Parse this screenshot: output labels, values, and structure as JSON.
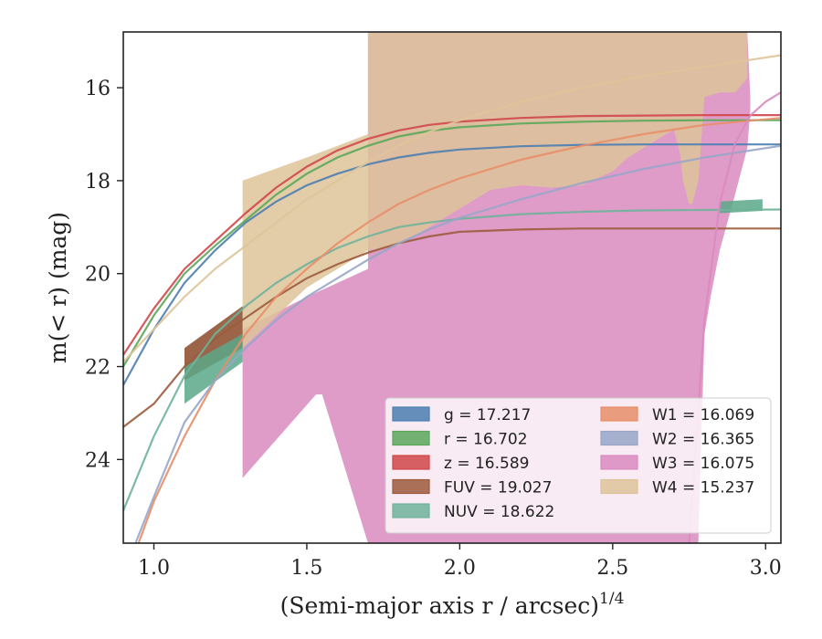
{
  "chart_data": {
    "type": "line",
    "xlabel": "(Semi-major axis r / arcsec)",
    "xlabel_superscript": "1/4",
    "ylabel": "m(< r) (mag)",
    "xlim": [
      0.9,
      3.05
    ],
    "ylim": [
      25.8,
      14.8
    ],
    "y_inverted": true,
    "xticks": [
      "1.0",
      "1.5",
      "2.0",
      "2.5",
      "3.0"
    ],
    "yticks": [
      "16",
      "18",
      "20",
      "22",
      "24"
    ],
    "grid": false,
    "legend_position": "lower-right",
    "series": [
      {
        "name": "g = 17.217",
        "color": "#4c7eb0",
        "x": [
          0.9,
          1.0,
          1.1,
          1.2,
          1.3,
          1.4,
          1.5,
          1.6,
          1.7,
          1.8,
          1.9,
          2.0,
          2.2,
          2.4,
          2.6,
          2.8,
          3.05
        ],
        "y": [
          22.4,
          21.2,
          20.2,
          19.5,
          18.9,
          18.45,
          18.1,
          17.85,
          17.65,
          17.5,
          17.4,
          17.33,
          17.26,
          17.23,
          17.22,
          17.22,
          17.22
        ]
      },
      {
        "name": "r = 16.702",
        "color": "#5aa75a",
        "x": [
          0.9,
          1.0,
          1.1,
          1.2,
          1.3,
          1.4,
          1.5,
          1.6,
          1.7,
          1.8,
          1.9,
          2.0,
          2.2,
          2.4,
          2.6,
          2.8,
          3.05
        ],
        "y": [
          22.0,
          20.9,
          20.0,
          19.4,
          18.85,
          18.3,
          17.85,
          17.5,
          17.25,
          17.05,
          16.93,
          16.85,
          16.77,
          16.73,
          16.71,
          16.7,
          16.7
        ]
      },
      {
        "name": "z = 16.589",
        "color": "#d0474a",
        "x": [
          0.9,
          1.0,
          1.1,
          1.2,
          1.3,
          1.4,
          1.5,
          1.6,
          1.7,
          1.8,
          1.9,
          2.0,
          2.2,
          2.4,
          2.6,
          2.8,
          3.05
        ],
        "y": [
          21.75,
          20.75,
          19.9,
          19.3,
          18.7,
          18.15,
          17.7,
          17.35,
          17.1,
          16.92,
          16.8,
          16.73,
          16.65,
          16.61,
          16.6,
          16.59,
          16.59
        ]
      },
      {
        "name": "FUV = 19.027",
        "color": "#9c5c3c",
        "x": [
          0.9,
          1.0,
          1.1,
          1.2,
          1.3,
          1.4,
          1.5,
          1.6,
          1.7,
          1.8,
          1.9,
          2.0,
          2.2,
          2.4,
          2.6,
          2.8,
          3.05
        ],
        "y": [
          23.3,
          22.8,
          22.0,
          21.4,
          20.95,
          20.5,
          20.1,
          19.8,
          19.55,
          19.35,
          19.2,
          19.1,
          19.05,
          19.03,
          19.03,
          19.03,
          19.03
        ]
      },
      {
        "name": "NUV = 18.622",
        "color": "#6fb39a",
        "x": [
          0.9,
          1.0,
          1.1,
          1.2,
          1.3,
          1.4,
          1.5,
          1.6,
          1.7,
          1.8,
          1.9,
          2.0,
          2.2,
          2.4,
          2.6,
          2.8,
          3.05
        ],
        "y": [
          25.1,
          23.5,
          22.2,
          21.3,
          20.7,
          20.2,
          19.8,
          19.45,
          19.2,
          19.0,
          18.9,
          18.82,
          18.72,
          18.67,
          18.64,
          18.63,
          18.62
        ]
      },
      {
        "name": "W1 = 16.069",
        "color": "#e88e68",
        "x": [
          0.95,
          1.0,
          1.1,
          1.2,
          1.3,
          1.4,
          1.5,
          1.6,
          1.7,
          1.8,
          1.9,
          2.0,
          2.2,
          2.4,
          2.6,
          2.8,
          3.05
        ],
        "y": [
          25.8,
          24.9,
          23.5,
          22.3,
          21.3,
          20.5,
          19.9,
          19.35,
          18.9,
          18.5,
          18.2,
          17.95,
          17.55,
          17.25,
          17.0,
          16.8,
          16.65
        ]
      },
      {
        "name": "W2 = 16.365",
        "color": "#98a6c8",
        "x": [
          0.94,
          1.0,
          1.1,
          1.2,
          1.3,
          1.4,
          1.5,
          1.6,
          1.7,
          1.8,
          1.9,
          2.0,
          2.2,
          2.4,
          2.6,
          2.8,
          3.05
        ],
        "y": [
          25.8,
          24.8,
          23.2,
          22.3,
          21.6,
          21.0,
          20.5,
          20.1,
          19.7,
          19.35,
          19.05,
          18.8,
          18.4,
          18.05,
          17.75,
          17.5,
          17.25
        ]
      },
      {
        "name": "W3 = 16.075",
        "color": "#d98bc0",
        "x": [
          2.75,
          2.8,
          2.85,
          2.9,
          2.95,
          3.0,
          3.05
        ],
        "y": [
          25.8,
          21.0,
          18.5,
          17.2,
          16.6,
          16.3,
          16.1
        ]
      },
      {
        "name": "W4 = 15.237",
        "color": "#dec49a",
        "x": [
          0.9,
          1.0,
          1.1,
          1.2,
          1.3,
          1.4,
          1.5,
          1.6,
          1.7,
          1.8,
          1.9,
          2.0,
          2.2,
          2.4,
          2.6,
          2.8,
          3.05
        ],
        "y": [
          21.9,
          21.2,
          20.5,
          19.9,
          19.4,
          18.9,
          18.4,
          18.0,
          17.6,
          17.25,
          16.95,
          16.7,
          16.3,
          16.0,
          15.75,
          15.55,
          15.3
        ]
      }
    ],
    "bands": [
      {
        "series": "W3 = 16.075",
        "color": "#d98bc0",
        "opacity": 0.85,
        "x": [
          1.29,
          1.29,
          1.5,
          1.7,
          1.7,
          1.7,
          1.8,
          1.9,
          2.0,
          2.1,
          2.2,
          2.3,
          2.4,
          2.5,
          2.55,
          2.6,
          2.65,
          2.7,
          2.72,
          2.72,
          2.75,
          2.8,
          2.8,
          2.82,
          2.85,
          2.88,
          2.94,
          2.95,
          2.95,
          2.94,
          2.9,
          2.85,
          2.82,
          2.8,
          2.8,
          2.78,
          2.76,
          2.75,
          2.74,
          2.73,
          2.72,
          2.72,
          2.7,
          2.65,
          2.6,
          2.55,
          2.5,
          2.4,
          2.2,
          2.0,
          1.8,
          1.7,
          1.7,
          1.55,
          1.53,
          1.29
        ],
        "y_upper": null,
        "poly_y": [
          24.4,
          21.2,
          20.5,
          19.9,
          14.8,
          14.8,
          14.8,
          14.8,
          14.8,
          14.8,
          14.8,
          14.8,
          14.8,
          14.8,
          14.8,
          14.8,
          14.8,
          14.8,
          14.8,
          14.8,
          14.8,
          14.8,
          14.8,
          14.8,
          14.8,
          14.8,
          14.8,
          16.2,
          16.5,
          17.3,
          18.3,
          19.5,
          20.5,
          21.3,
          21.3,
          25.8,
          25.8,
          25.8,
          25.8,
          25.8,
          25.8,
          25.8,
          25.8,
          25.8,
          25.8,
          25.8,
          25.8,
          25.8,
          25.8,
          25.8,
          25.8,
          25.8,
          25.8,
          22.6,
          22.6,
          24.4
        ]
      },
      {
        "series": "W4 = 15.237",
        "color": "#dec49a",
        "opacity": 0.85,
        "x": [
          1.29,
          1.29,
          1.5,
          1.7,
          1.7,
          1.8,
          1.9,
          2.0,
          2.1,
          2.2,
          2.3,
          2.4,
          2.5,
          2.55,
          2.6,
          2.62,
          2.65,
          2.7,
          2.75,
          2.8,
          2.85,
          2.9,
          2.94,
          2.94,
          2.9,
          2.85,
          2.8,
          2.78,
          2.76,
          2.75,
          2.73,
          2.72,
          2.7,
          2.6,
          2.55,
          2.5,
          2.4,
          2.3,
          2.2,
          2.1,
          2.0,
          1.9,
          1.8,
          1.7,
          1.5,
          1.29
        ],
        "poly_y": [
          21.6,
          18.0,
          17.5,
          17.0,
          14.8,
          14.8,
          14.8,
          14.8,
          14.8,
          14.8,
          14.8,
          14.8,
          14.8,
          14.8,
          14.8,
          14.8,
          14.8,
          14.8,
          14.8,
          14.8,
          14.8,
          14.8,
          14.8,
          15.8,
          16.1,
          16.1,
          16.2,
          18.0,
          18.5,
          18.5,
          18.0,
          17.4,
          16.9,
          17.3,
          17.5,
          17.8,
          18.1,
          18.15,
          18.1,
          18.2,
          18.6,
          19.0,
          19.4,
          19.5,
          20.3,
          21.6
        ]
      },
      {
        "series": "FUV = 19.027",
        "color": "#8b4a2a",
        "opacity": 0.85,
        "x": [
          1.1,
          1.29,
          1.29,
          1.1
        ],
        "poly_y": [
          21.6,
          20.7,
          21.6,
          22.3
        ]
      },
      {
        "series": "NUV = 18.622",
        "color": "#5aa888",
        "opacity": 0.85,
        "x": [
          1.1,
          1.29,
          1.29,
          1.1
        ],
        "poly_y": [
          22.0,
          21.3,
          21.9,
          22.8
        ]
      },
      {
        "series": "NUV = 18.622",
        "color": "#5aa888",
        "opacity": 0.85,
        "x": [
          2.85,
          2.99,
          2.99,
          2.85
        ],
        "poly_y": [
          18.45,
          18.4,
          18.65,
          18.7
        ]
      }
    ]
  },
  "legend": {
    "left": [
      {
        "label": "g = 17.217",
        "color": "#4c7eb0"
      },
      {
        "label": "r = 16.702",
        "color": "#5aa75a"
      },
      {
        "label": "z = 16.589",
        "color": "#d0474a"
      },
      {
        "label": "FUV = 19.027",
        "color": "#9c5c3c"
      },
      {
        "label": "NUV = 18.622",
        "color": "#6fb39a"
      }
    ],
    "right": [
      {
        "label": "W1 = 16.069",
        "color": "#e88e68"
      },
      {
        "label": "W2 = 16.365",
        "color": "#98a6c8"
      },
      {
        "label": "W3 = 16.075",
        "color": "#d98bc0"
      },
      {
        "label": "W4 = 15.237",
        "color": "#dec49a"
      }
    ]
  }
}
